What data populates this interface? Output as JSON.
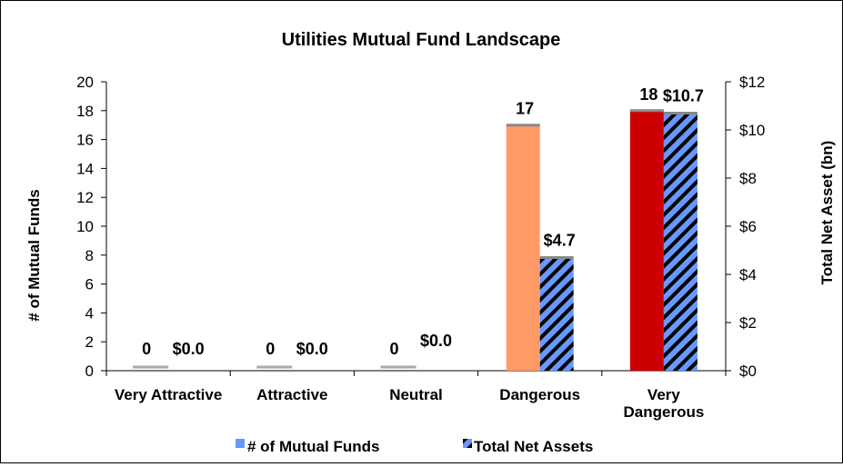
{
  "chart_data": {
    "type": "bar",
    "title": "Utilities Mutual Fund Landscape",
    "ylabel_left": "# of Mutual Funds",
    "ylabel_right": "Total Net Asset (bn)",
    "ylim_left": [
      0,
      20
    ],
    "ylim_right": [
      0,
      12
    ],
    "yticks_left": [
      "0",
      "2",
      "4",
      "6",
      "8",
      "10",
      "12",
      "14",
      "16",
      "18",
      "20"
    ],
    "yticks_right": [
      "$0",
      "$2",
      "$4",
      "$6",
      "$8",
      "$10",
      "$12"
    ],
    "categories": [
      "Very Attractive",
      "Attractive",
      "Neutral",
      "Dangerous",
      "Very Dangerous"
    ],
    "series": [
      {
        "name": "# of Mutual Funds",
        "axis": "left",
        "values": [
          0,
          0,
          0,
          17,
          18
        ],
        "labels": [
          "0",
          "0",
          "0",
          "17",
          "18"
        ],
        "colors": [
          "#7fb2e6",
          "#7fb2e6",
          "#7fb2e6",
          "#ff9a66",
          "#cc0000"
        ]
      },
      {
        "name": "Total Net Assets",
        "axis": "right",
        "values": [
          0.0,
          0.0,
          0.0,
          4.7,
          10.7
        ],
        "labels": [
          "$0.0",
          "$0.0",
          "$0.0",
          "$4.7",
          "$10.7"
        ],
        "pattern_colors": [
          "#6699ff",
          "#000000"
        ]
      }
    ],
    "legend_position": "bottom",
    "grid": false
  }
}
